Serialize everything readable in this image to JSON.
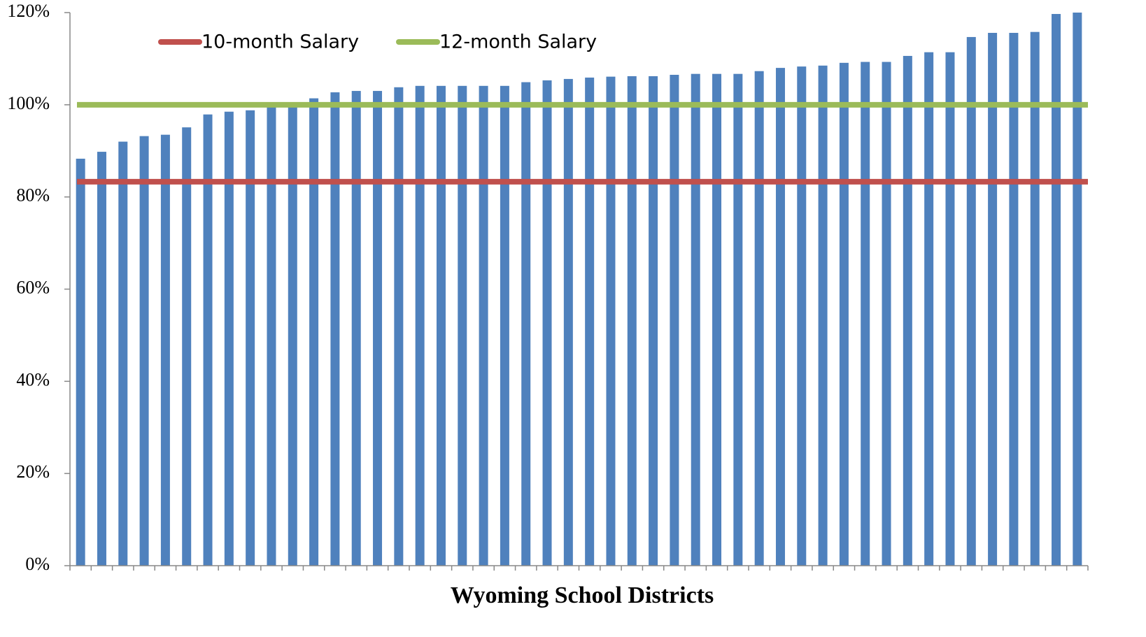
{
  "chart_data": {
    "type": "bar",
    "x_label": "Wyoming School Districts",
    "color": "#4f81bd",
    "values": [
      88.3,
      89.8,
      92.0,
      93.2,
      93.5,
      95.1,
      97.9,
      98.5,
      98.8,
      99.8,
      100.3,
      101.4,
      102.7,
      103.0,
      103.0,
      103.8,
      104.1,
      104.1,
      104.1,
      104.1,
      104.1,
      104.9,
      105.3,
      105.6,
      105.9,
      106.1,
      106.2,
      106.2,
      106.5,
      106.7,
      106.7,
      106.7,
      107.3,
      108.0,
      108.3,
      108.5,
      109.1,
      109.3,
      109.3,
      110.6,
      111.4,
      111.4,
      114.7,
      115.6,
      115.6,
      115.8,
      119.7,
      120
    ],
    "reference_lines": [
      {
        "name": "10-month Salary",
        "value": 83.3,
        "color": "#c0504d"
      },
      {
        "name": "12-month Salary",
        "value": 100,
        "color": "#9bbb59"
      }
    ],
    "ylim": [
      0,
      120
    ],
    "yticks": [
      {
        "value": 0,
        "label": "0%"
      },
      {
        "value": 20,
        "label": "20%"
      },
      {
        "value": 40,
        "label": "40%"
      },
      {
        "value": 60,
        "label": "60%"
      },
      {
        "value": 80,
        "label": "80%"
      },
      {
        "value": 100,
        "label": "100%"
      },
      {
        "value": 120,
        "label": "120%"
      }
    ],
    "legend": "top-left"
  }
}
